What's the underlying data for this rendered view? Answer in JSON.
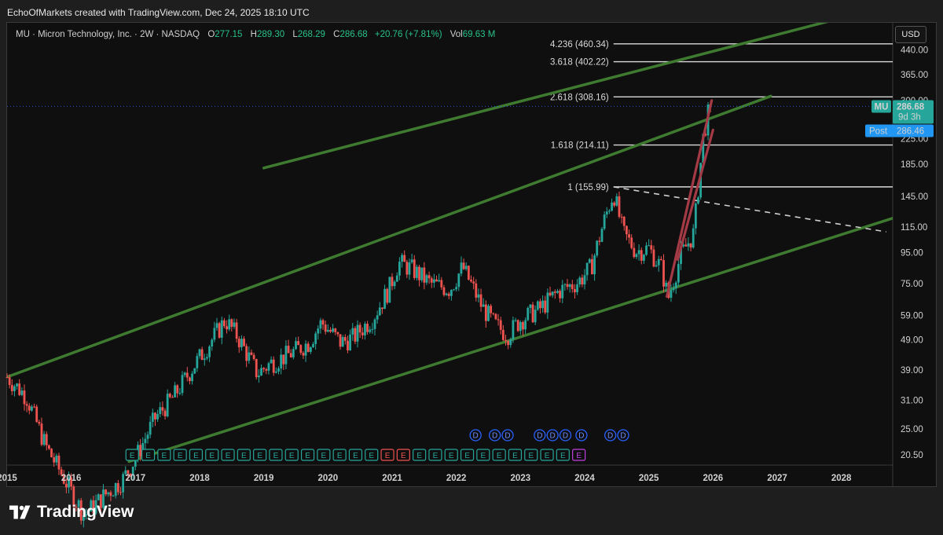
{
  "credit": "EchoOfMarkets created with TradingView.com, Dec 24, 2025 18:10 UTC",
  "legend": {
    "symbol": "MU · Micron Technology, Inc. · 2W · NASDAQ",
    "open_label": "O",
    "open": "277.15",
    "high_label": "H",
    "high": "289.30",
    "low_label": "L",
    "low": "268.29",
    "close_label": "C",
    "close": "286.68",
    "change": "+20.76 (+7.81%)",
    "vol_label": "Vol",
    "vol": "69.63 M"
  },
  "currency": "USD",
  "brand": "TradingView",
  "colors": {
    "background": "#0f0f0f",
    "channel": "#3e7a2f",
    "up": "#26a69a",
    "down": "#ef5350",
    "fib": "#d9d9d9",
    "price_badge": "#26a69a",
    "post_badge": "#2196f3",
    "wedge": "#a33a45"
  },
  "price_axis": {
    "ticks": [
      "440.00",
      "365.00",
      "300.00",
      "225.00",
      "185.00",
      "145.00",
      "115.00",
      "95.00",
      "75.00",
      "59.00",
      "49.00",
      "39.00",
      "31.00",
      "25.00",
      "20.50"
    ],
    "last_price": {
      "symbol": "MU",
      "price": "286.68",
      "countdown": "9d 3h"
    },
    "post_price": {
      "label": "Post",
      "price": "286.46"
    }
  },
  "time_axis": {
    "labels": [
      "2015",
      "2016",
      "2017",
      "2018",
      "2019",
      "2020",
      "2021",
      "2022",
      "2023",
      "2024",
      "2025",
      "2026",
      "2027",
      "2028"
    ]
  },
  "chart_data": {
    "type": "candlestick",
    "symbol": "MU",
    "interval": "2W",
    "y_scale": "log",
    "ylim": [
      19,
      540
    ],
    "xlim": [
      2015.0,
      2028.8
    ],
    "series": [
      {
        "x": [
          2015.0,
          2015.3,
          2015.6,
          2015.9,
          2016.2,
          2016.5,
          2016.8,
          2017.0,
          2017.3,
          2017.6,
          2017.9,
          2018.1,
          2018.4,
          2018.6,
          2018.9,
          2019.1,
          2019.4,
          2019.7,
          2019.9,
          2020.2,
          2020.4,
          2020.7,
          2020.95,
          2021.1,
          2021.3,
          2021.6,
          2021.9,
          2022.1,
          2022.4,
          2022.6,
          2022.8,
          2023.0,
          2023.3,
          2023.6,
          2023.9,
          2024.1,
          2024.3,
          2024.45,
          2024.6,
          2024.8,
          2025.0,
          2025.2,
          2025.3,
          2025.5,
          2025.7,
          2025.85,
          2025.95
        ],
        "close": [
          37,
          32,
          22,
          17,
          13,
          15,
          17,
          20,
          27,
          32,
          40,
          46,
          57,
          50,
          38,
          41,
          44,
          48,
          56,
          48,
          50,
          58,
          72,
          88,
          84,
          75,
          72,
          85,
          63,
          55,
          51,
          57,
          62,
          71,
          76,
          85,
          120,
          150,
          110,
          96,
          98,
          84,
          67,
          93,
          110,
          230,
          286.68
        ]
      }
    ],
    "fibonacci": [
      {
        "ratio": "1",
        "price": "155.99"
      },
      {
        "ratio": "1.618",
        "price": "214.11"
      },
      {
        "ratio": "2.618",
        "price": "308.16"
      },
      {
        "ratio": "3.618",
        "price": "402.22"
      },
      {
        "ratio": "4.236",
        "price": "460.34"
      }
    ],
    "fib_labels": [
      "1 (155.99)",
      "1.618 (214.11)",
      "2.618 (308.16)",
      "3.618 (402.22)",
      "4.236 (460.34)"
    ],
    "channel": {
      "lower": [
        [
          2016.9,
          19.5
        ],
        [
          2028.8,
          123
        ]
      ],
      "upper": [
        [
          2015.0,
          37
        ],
        [
          2026.9,
          310
        ]
      ],
      "upper2": [
        [
          2019.0,
          180
        ],
        [
          2028.0,
          560
        ]
      ]
    },
    "dashed_trend": [
      [
        2024.45,
        156
      ],
      [
        2028.7,
        111
      ]
    ],
    "dividend_marker": "D",
    "dividends": [
      2022.3,
      2022.6,
      2022.8,
      2023.3,
      2023.5,
      2023.7,
      2023.95,
      2024.4,
      2024.6
    ],
    "earnings_marker": "E",
    "earnings_count": 29,
    "earnings_down": [
      16,
      17
    ],
    "earnings_pending": [
      28
    ]
  }
}
